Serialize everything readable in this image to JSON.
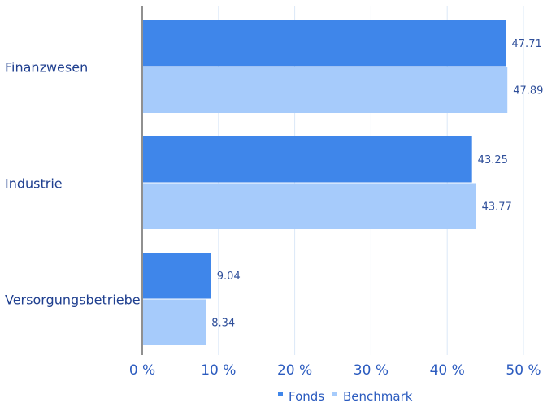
{
  "chart_data": {
    "type": "bar",
    "orientation": "horizontal",
    "categories": [
      "Finanzwesen",
      "Industrie",
      "Versorgungsbetriebe"
    ],
    "series": [
      {
        "name": "Fonds",
        "values": [
          47.71,
          43.25,
          9.04
        ],
        "value_labels": [
          "47.71",
          "43.25",
          "9.04"
        ],
        "color": "#3f86ea"
      },
      {
        "name": "Benchmark",
        "values": [
          47.89,
          43.77,
          8.34
        ],
        "value_labels": [
          "47.89",
          "43.77",
          "8.34"
        ],
        "color": "#a6cbfb"
      }
    ],
    "xlim": [
      0,
      50
    ],
    "xticks": [
      0,
      10,
      20,
      30,
      40,
      50
    ],
    "xtick_labels": [
      "0 %",
      "10 %",
      "20 %",
      "30 %",
      "40 %",
      "50 %"
    ],
    "grid": "vertical",
    "legend_position": "bottom-center"
  }
}
